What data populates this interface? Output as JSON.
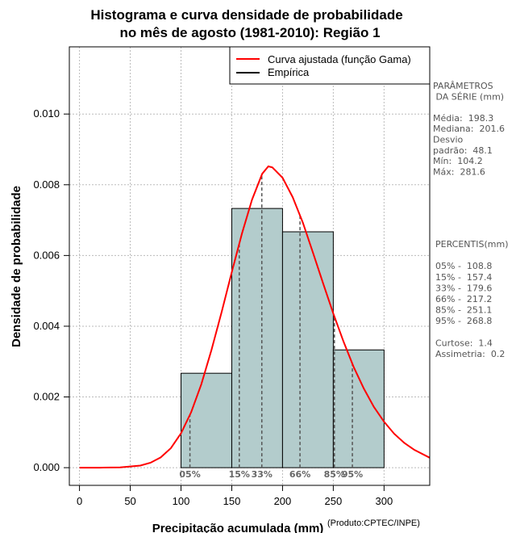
{
  "chart_data": {
    "type": "bar",
    "title": [
      "Histograma e curva densidade de probabilidade",
      "no mês de agosto (1981-2010): Região 1"
    ],
    "xlabel": "Precipitação acumulada (mm)",
    "ylabel": "Densidade de probabilidade",
    "xlim": [
      -10,
      345
    ],
    "ylim": [
      -0.0005,
      0.0119
    ],
    "x_ticks": [
      0,
      50,
      100,
      150,
      200,
      250,
      300
    ],
    "x_tick_labels": [
      "0",
      "50",
      "100",
      "150",
      "200",
      "250",
      "300"
    ],
    "y_ticks": [
      0.0,
      0.002,
      0.004,
      0.006,
      0.008,
      0.01
    ],
    "y_tick_labels": [
      "0.000",
      "0.002",
      "0.004",
      "0.006",
      "0.008",
      "0.010"
    ],
    "grid": true,
    "histogram": {
      "bin_edges": [
        100,
        150,
        200,
        250,
        300
      ],
      "densities": [
        0.00267,
        0.00733,
        0.00667,
        0.00333
      ],
      "fill_color": "#b3cccc"
    },
    "fitted_curve": {
      "name": "Curva ajustada (função Gama)",
      "color": "#ff0000",
      "x": [
        0,
        20,
        40,
        60,
        70,
        80,
        90,
        100,
        110,
        120,
        130,
        140,
        150,
        160,
        170,
        180,
        186,
        190,
        200,
        210,
        220,
        230,
        240,
        250,
        260,
        270,
        280,
        290,
        300,
        310,
        320,
        330,
        345
      ],
      "y": [
        0.0,
        0.0,
        1e-05,
        6e-05,
        0.00014,
        0.00029,
        0.00055,
        0.00097,
        0.00157,
        0.00236,
        0.00333,
        0.0044,
        0.00553,
        0.00662,
        0.00758,
        0.00831,
        0.00852,
        0.00849,
        0.0082,
        0.00765,
        0.00693,
        0.00608,
        0.00521,
        0.00436,
        0.00357,
        0.00285,
        0.00224,
        0.00172,
        0.0013,
        0.00096,
        0.0007,
        0.0005,
        0.00028
      ]
    },
    "legend": {
      "placement": "top-right",
      "entries": [
        {
          "label": "Curva ajustada (função Gama)",
          "color": "#ff0000"
        },
        {
          "label": "Empírica",
          "color": "#000000"
        }
      ]
    },
    "percentile_markers": [
      {
        "label": "05%",
        "x": 108.8
      },
      {
        "label": "15%",
        "x": 157.4
      },
      {
        "label": "33%",
        "x": 179.6
      },
      {
        "label": "66%",
        "x": 217.2
      },
      {
        "label": "85%",
        "x": 251.1
      },
      {
        "label": "95%",
        "x": 268.8
      }
    ]
  },
  "side_panel": {
    "params_lines": [
      "PARÂMETROS",
      " DA SÉRIE (mm)",
      "",
      "Média:  198.3",
      "Mediana:  201.6",
      "Desvio",
      "padrão:  48.1",
      "Mín:  104.2",
      "Máx:  281.6"
    ],
    "percentis_lines": [
      "PERCENTIS(mm)",
      "",
      "05% -  108.8",
      "15% -  157.4",
      "33% -  179.6",
      "66% -  217.2",
      "85% -  251.1",
      "95% -  268.8",
      "",
      "Curtose:  1.4",
      "Assimetria:  0.2"
    ]
  },
  "credit": "(Produto:CPTEC/INPE)"
}
